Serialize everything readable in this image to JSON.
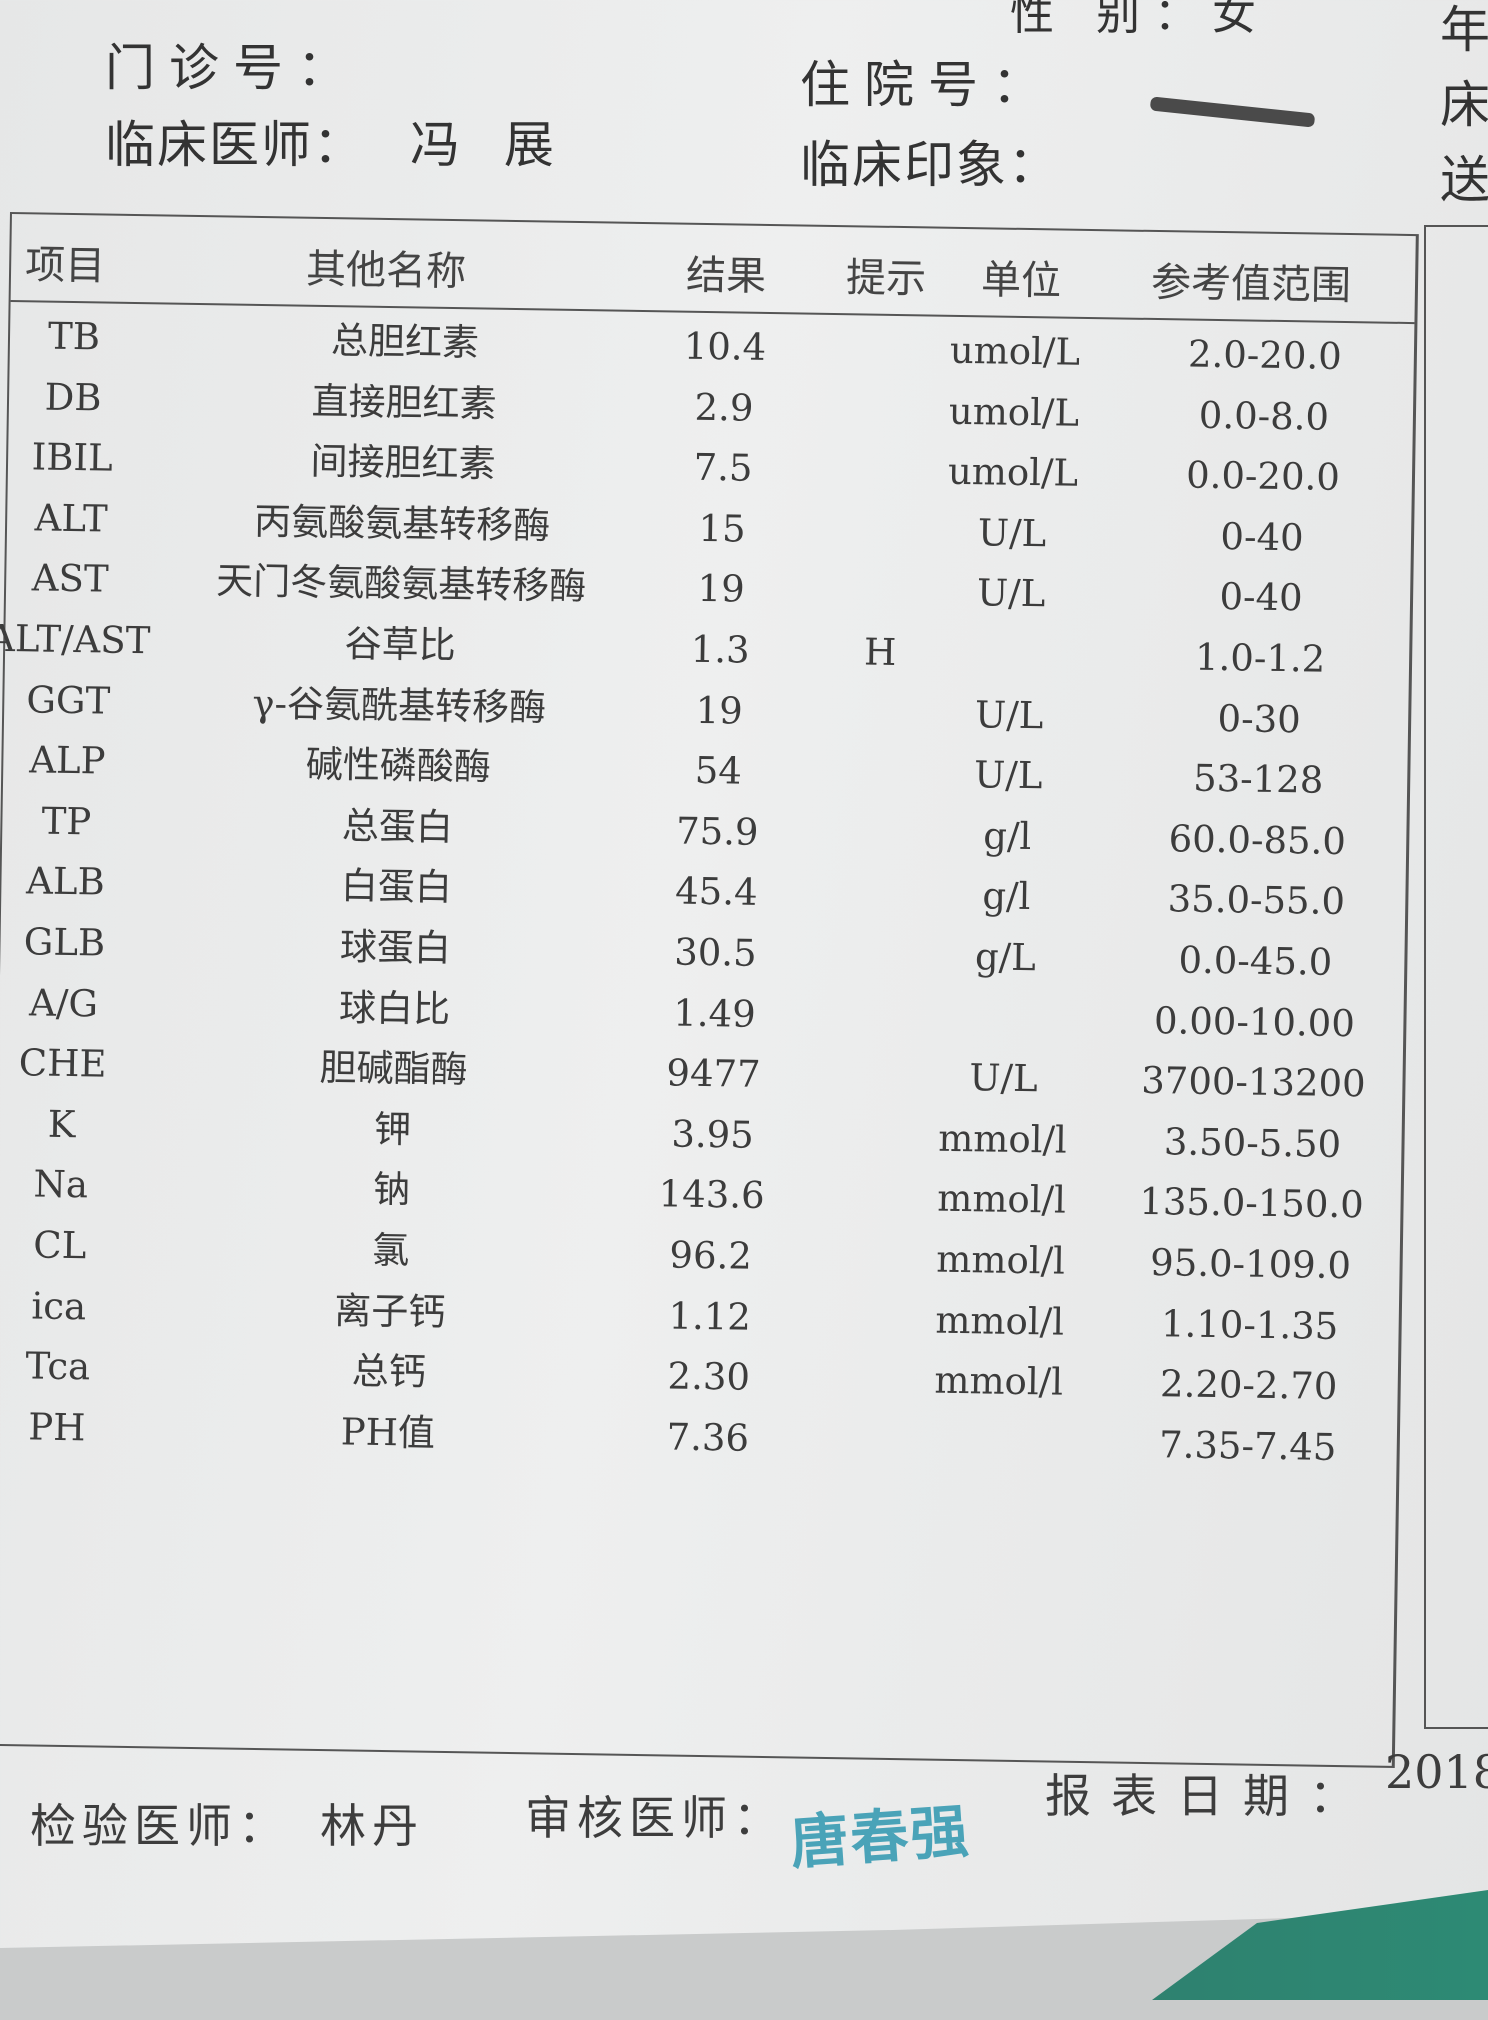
{
  "header": {
    "gender_label": "性 别：女",
    "outpatient_no_label": "门诊号：",
    "clinician_label": "临床医师：",
    "clinician_name": "冯 展",
    "inpatient_no_label": "住院号：",
    "clinical_impression_label": "临床印象：",
    "right_edge_chars": [
      "年",
      "床",
      "送"
    ]
  },
  "table": {
    "columns": [
      "项目",
      "其他名称",
      "结果",
      "提示",
      "单位",
      "参考值范围"
    ],
    "rows": [
      {
        "item": "TB",
        "name": "总胆红素",
        "result": "10.4",
        "flag": "",
        "unit": "umol/L",
        "range": "2.0-20.0"
      },
      {
        "item": "DB",
        "name": "直接胆红素",
        "result": "2.9",
        "flag": "",
        "unit": "umol/L",
        "range": "0.0-8.0"
      },
      {
        "item": "IBIL",
        "name": "间接胆红素",
        "result": "7.5",
        "flag": "",
        "unit": "umol/L",
        "range": "0.0-20.0"
      },
      {
        "item": "ALT",
        "name": "丙氨酸氨基转移酶",
        "result": "15",
        "flag": "",
        "unit": "U/L",
        "range": "0-40"
      },
      {
        "item": "AST",
        "name": "天门冬氨酸氨基转移酶",
        "result": "19",
        "flag": "",
        "unit": "U/L",
        "range": "0-40"
      },
      {
        "item": "ALT/AST",
        "name": "谷草比",
        "result": "1.3",
        "flag": "H",
        "unit": "",
        "range": "1.0-1.2"
      },
      {
        "item": "GGT",
        "name": "γ-谷氨酰基转移酶",
        "result": "19",
        "flag": "",
        "unit": "U/L",
        "range": "0-30"
      },
      {
        "item": "ALP",
        "name": "碱性磷酸酶",
        "result": "54",
        "flag": "",
        "unit": "U/L",
        "range": "53-128"
      },
      {
        "item": "TP",
        "name": "总蛋白",
        "result": "75.9",
        "flag": "",
        "unit": "g/l",
        "range": "60.0-85.0"
      },
      {
        "item": "ALB",
        "name": "白蛋白",
        "result": "45.4",
        "flag": "",
        "unit": "g/l",
        "range": "35.0-55.0"
      },
      {
        "item": "GLB",
        "name": "球蛋白",
        "result": "30.5",
        "flag": "",
        "unit": "g/L",
        "range": "0.0-45.0"
      },
      {
        "item": "A/G",
        "name": "球白比",
        "result": "1.49",
        "flag": "",
        "unit": "",
        "range": "0.00-10.00"
      },
      {
        "item": "CHE",
        "name": "胆碱酯酶",
        "result": "9477",
        "flag": "",
        "unit": "U/L",
        "range": "3700-13200"
      },
      {
        "item": "K",
        "name": "钾",
        "result": "3.95",
        "flag": "",
        "unit": "mmol/l",
        "range": "3.50-5.50"
      },
      {
        "item": "Na",
        "name": "钠",
        "result": "143.6",
        "flag": "",
        "unit": "mmol/l",
        "range": "135.0-150.0"
      },
      {
        "item": "CL",
        "name": "氯",
        "result": "96.2",
        "flag": "",
        "unit": "mmol/l",
        "range": "95.0-109.0"
      },
      {
        "item": "ica",
        "name": "离子钙",
        "result": "1.12",
        "flag": "",
        "unit": "mmol/l",
        "range": "1.10-1.35"
      },
      {
        "item": "Tca",
        "name": "总钙",
        "result": "2.30",
        "flag": "",
        "unit": "mmol/l",
        "range": "2.20-2.70"
      },
      {
        "item": "PH",
        "name": "PH值",
        "result": "7.36",
        "flag": "",
        "unit": "",
        "range": "7.35-7.45"
      }
    ]
  },
  "footer": {
    "lab_doctor_label": "检验医师：",
    "lab_doctor_name": "林丹",
    "reviewer_label": "审核医师：",
    "reviewer_signature": "唐春强",
    "report_date_label": "报表日期：",
    "report_date_value": "2018-"
  },
  "colors": {
    "signature": "#4aa3b8",
    "ink": "#3a3a3a",
    "paper": "#e9eaea"
  }
}
